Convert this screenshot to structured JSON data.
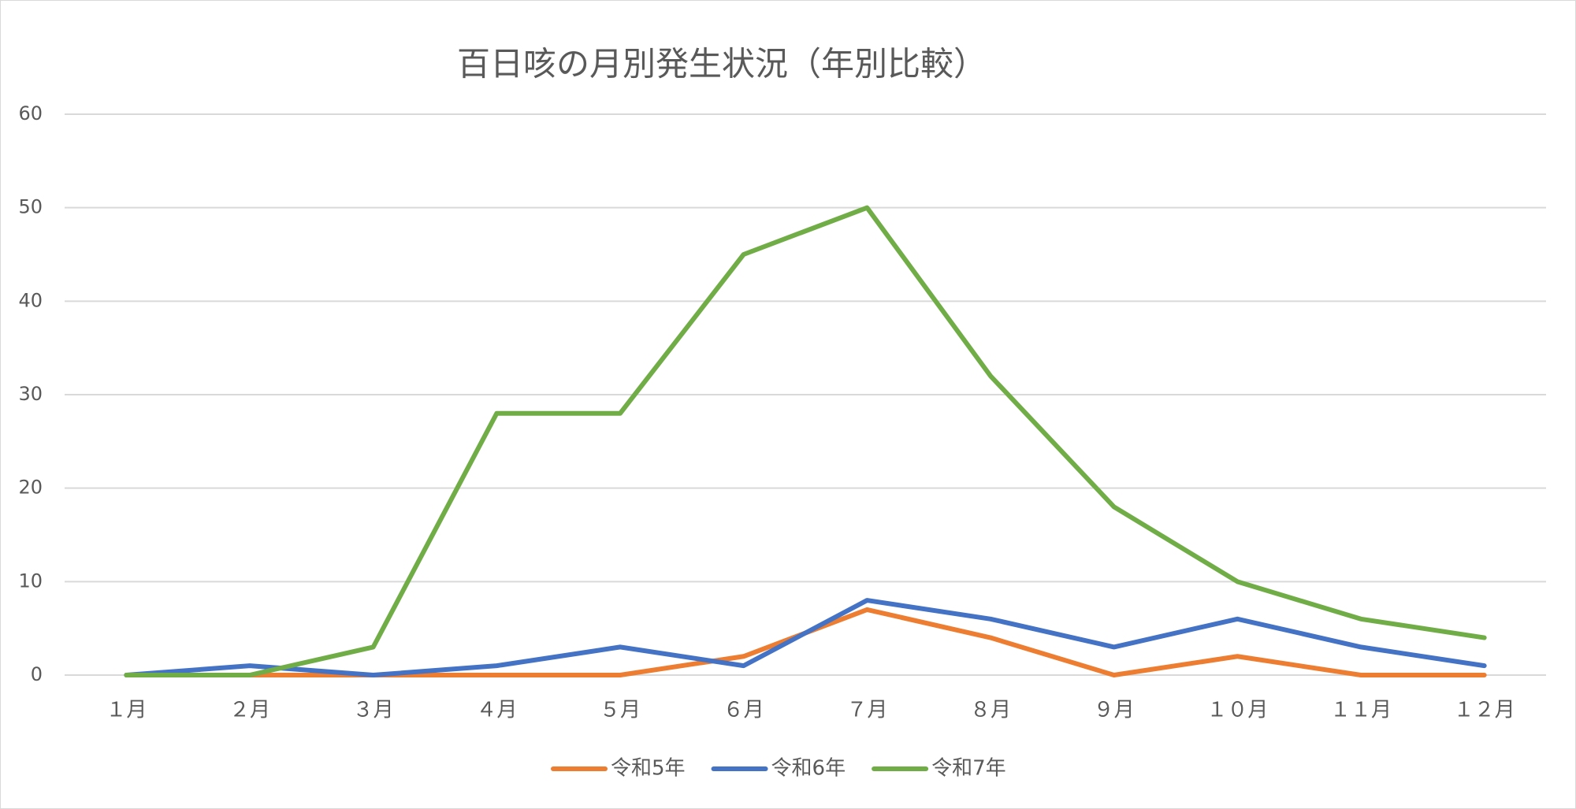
{
  "chart_data": {
    "type": "line",
    "title": "百日咳の月別発生状況（年別比較）",
    "categories": [
      "１月",
      "２月",
      "３月",
      "４月",
      "５月",
      "６月",
      "７月",
      "８月",
      "９月",
      "１０月",
      "１１月",
      "１２月"
    ],
    "series": [
      {
        "name": "令和5年",
        "color": "#ed7d31",
        "values": [
          0,
          0,
          0,
          0,
          0,
          2,
          7,
          4,
          0,
          2,
          0,
          0
        ]
      },
      {
        "name": "令和6年",
        "color": "#4472c4",
        "values": [
          0,
          1,
          0,
          1,
          3,
          1,
          8,
          6,
          3,
          6,
          3,
          1
        ]
      },
      {
        "name": "令和7年",
        "color": "#70ad47",
        "values": [
          0,
          0,
          3,
          28,
          28,
          45,
          50,
          32,
          18,
          10,
          6,
          4
        ]
      }
    ],
    "ylim": [
      0,
      60
    ],
    "yticks": [
      0,
      10,
      20,
      30,
      40,
      50,
      60
    ],
    "grid": true,
    "legend": "bottom"
  }
}
